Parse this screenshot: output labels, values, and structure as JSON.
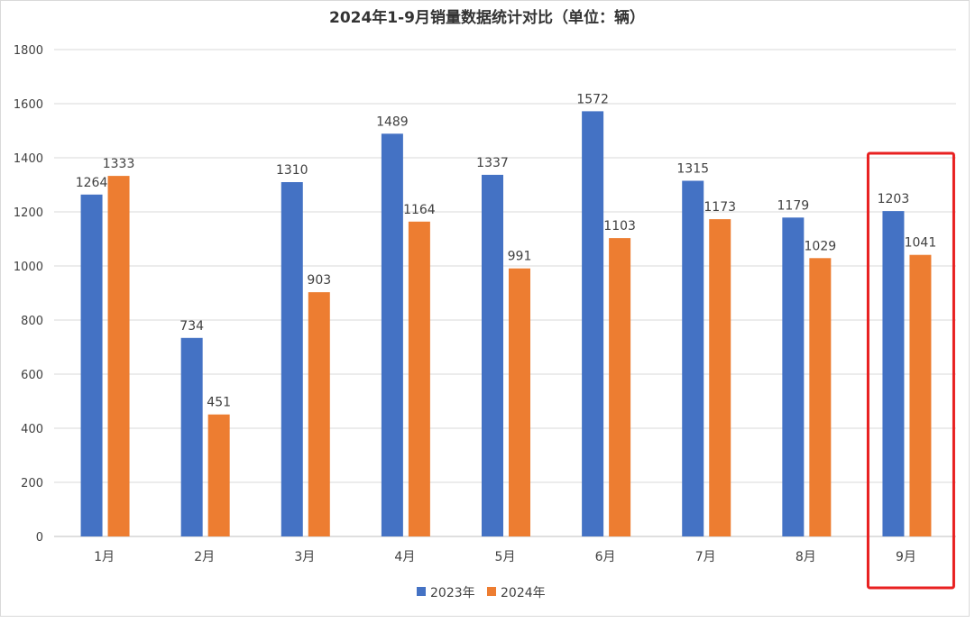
{
  "chart_data": {
    "type": "bar",
    "title": "2024年1-9月销量数据统计对比（单位：辆）",
    "categories": [
      "1月",
      "2月",
      "3月",
      "4月",
      "5月",
      "6月",
      "7月",
      "8月",
      "9月"
    ],
    "series": [
      {
        "name": "2023年",
        "color": "#4472C4",
        "values": [
          1264,
          734,
          1310,
          1489,
          1337,
          1572,
          1315,
          1179,
          1203
        ]
      },
      {
        "name": "2024年",
        "color": "#ED7D31",
        "values": [
          1333,
          451,
          903,
          1164,
          991,
          1103,
          1173,
          1029,
          1041
        ]
      }
    ],
    "ylim": [
      0,
      1800
    ],
    "yticks": [
      0,
      200,
      400,
      600,
      800,
      1000,
      1200,
      1400,
      1600,
      1800
    ],
    "grid": true,
    "legend": "bottom",
    "data_labels": true,
    "highlight": {
      "category": "9月",
      "color": "#E82020"
    }
  }
}
